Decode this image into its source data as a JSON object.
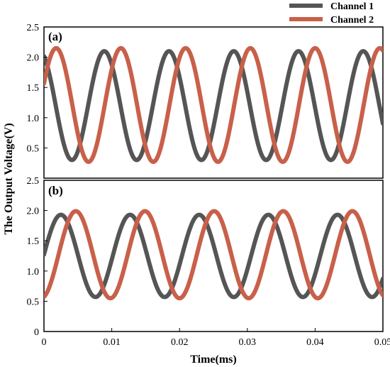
{
  "chart_data": {
    "type": "line",
    "xlabel": "Time(ms)",
    "ylabel": "The Output Voltage(V)",
    "xlim": [
      0,
      0.05
    ],
    "x_ticks": [
      "0",
      "0.01",
      "0.02",
      "0.03",
      "0.04",
      "0.05"
    ],
    "legend": {
      "position": "top-right",
      "entries": [
        {
          "name": "Channel 1",
          "color": "#555555"
        },
        {
          "name": "Channel 2",
          "color": "#c8604a"
        }
      ]
    },
    "panels": [
      {
        "label": "(a)",
        "ylim": [
          0,
          2.5
        ],
        "y_ticks": [
          "0.5",
          "1.0",
          "1.5",
          "2.0",
          "2.5"
        ],
        "period_ms": 0.00955,
        "series": [
          {
            "name": "Channel 1",
            "color": "#555555",
            "min": 0.3,
            "max": 2.1,
            "peaks_ms": [
              0.0089,
              0.0185,
              0.028,
              0.0386,
              0.048
            ]
          },
          {
            "name": "Channel 2",
            "color": "#c8604a",
            "min": 0.27,
            "max": 2.15,
            "peaks_ms": [
              0.0018,
              0.0108,
              0.0208,
              0.0308,
              0.0413
            ]
          }
        ]
      },
      {
        "label": "(b)",
        "ylim": [
          0,
          2.5
        ],
        "y_ticks": [
          "0",
          "0.5",
          "1.0",
          "1.5",
          "2.0",
          "2.5"
        ],
        "period_ms": 0.0102,
        "series": [
          {
            "name": "Channel 1",
            "color": "#555555",
            "min": 0.57,
            "max": 1.93,
            "peaks_ms": [
              0.0025,
              0.0135,
              0.0237,
              0.0336,
              0.0438
            ]
          },
          {
            "name": "Channel 2",
            "color": "#c8604a",
            "min": 0.55,
            "max": 1.99,
            "peaks_ms": [
              0.0047,
              0.0158,
              0.0258,
              0.0348,
              0.0448
            ]
          }
        ]
      }
    ]
  }
}
